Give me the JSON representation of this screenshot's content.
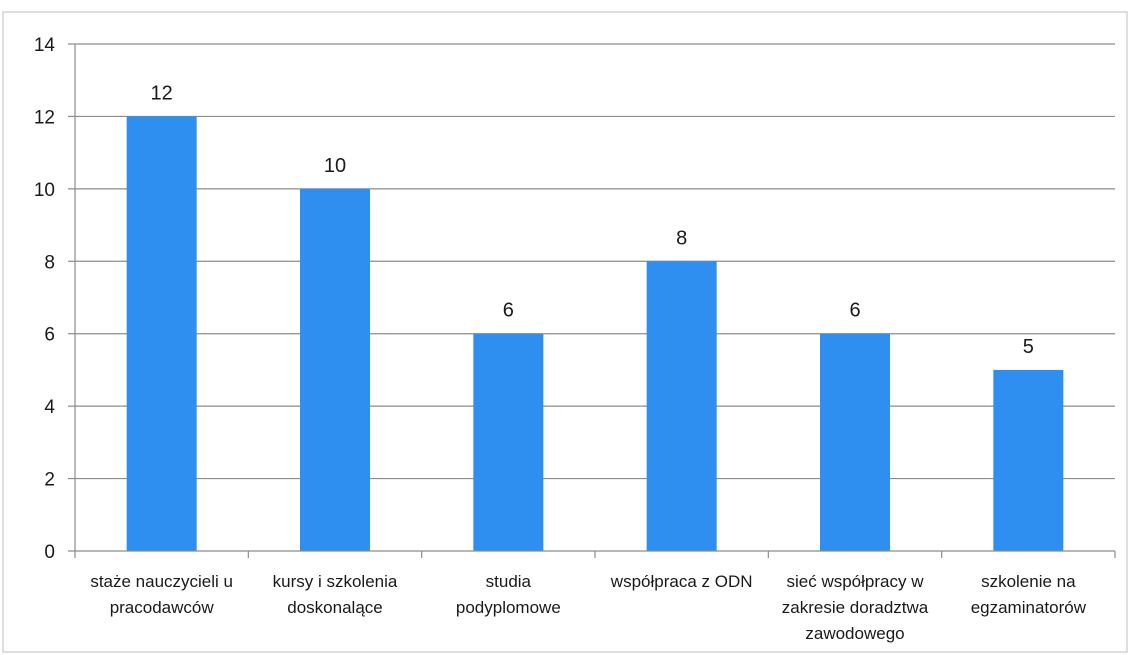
{
  "chart_data": {
    "type": "bar",
    "categories": [
      "staże nauczycieli u pracodawców",
      "kursy i szkolenia doskonalące",
      "studia podyplomowe",
      "współpraca z ODN",
      "sieć współpracy w zakresie doradztwa zawodowego",
      "szkolenie na egzaminatorów"
    ],
    "category_label_lines": [
      [
        "staże nauczycieli u",
        "pracodawców"
      ],
      [
        "kursy i szkolenia",
        "doskonalące"
      ],
      [
        "studia",
        "podyplomowe"
      ],
      [
        "współpraca z ODN"
      ],
      [
        "sieć współpracy w",
        "zakresie doradztwa",
        "zawodowego"
      ],
      [
        "szkolenie na",
        "egzaminatorów"
      ]
    ],
    "values": [
      12,
      10,
      6,
      8,
      6,
      5
    ],
    "data_labels": [
      "12",
      "10",
      "6",
      "8",
      "6",
      "5"
    ],
    "title": "",
    "xlabel": "",
    "ylabel": "",
    "ylim": [
      0,
      14
    ],
    "yticks": [
      "0",
      "2",
      "4",
      "6",
      "8",
      "10",
      "12",
      "14"
    ],
    "grid": true,
    "legend": "none",
    "colors": {
      "bar": "#2f8ff0",
      "grid": "#8c8c8c",
      "axis": "#8c8c8c",
      "border": "#d0d0d0"
    }
  }
}
